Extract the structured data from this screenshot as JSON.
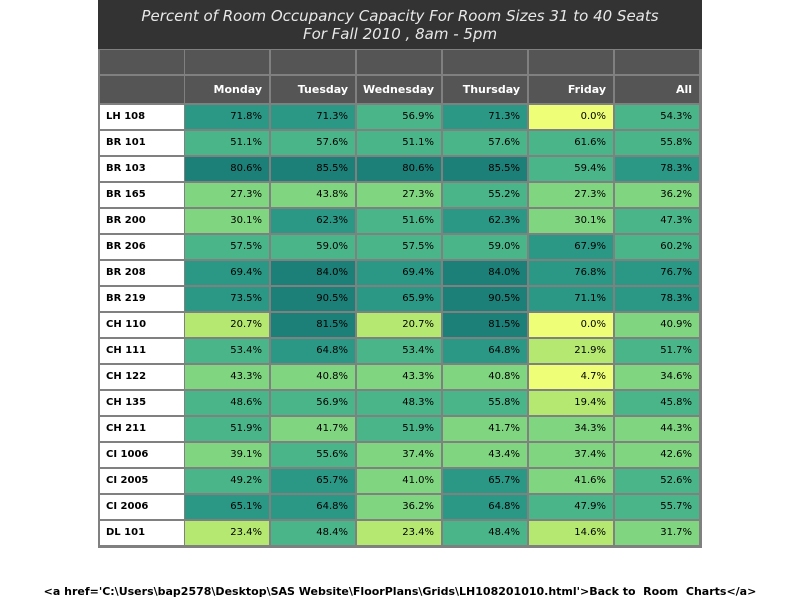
{
  "chart_data": {
    "type": "heatmap",
    "title_line1": "Percent of Room Occupancy Capacity For Room Sizes 31 to 40 Seats",
    "title_line2": "For Fall 2010  , 8am - 5pm",
    "columns": [
      "Monday",
      "Tuesday",
      "Wednesday",
      "Thursday",
      "Friday",
      "All"
    ],
    "rows": [
      {
        "room": "LH 108",
        "values": [
          71.8,
          71.3,
          56.9,
          71.3,
          0.0,
          54.3
        ]
      },
      {
        "room": "BR 101",
        "values": [
          51.1,
          57.6,
          51.1,
          57.6,
          61.6,
          55.8
        ]
      },
      {
        "room": "BR 103",
        "values": [
          80.6,
          85.5,
          80.6,
          85.5,
          59.4,
          78.3
        ]
      },
      {
        "room": "BR 165",
        "values": [
          27.3,
          43.8,
          27.3,
          55.2,
          27.3,
          36.2
        ]
      },
      {
        "room": "BR 200",
        "values": [
          30.1,
          62.3,
          51.6,
          62.3,
          30.1,
          47.3
        ]
      },
      {
        "room": "BR 206",
        "values": [
          57.5,
          59.0,
          57.5,
          59.0,
          67.9,
          60.2
        ]
      },
      {
        "room": "BR 208",
        "values": [
          69.4,
          84.0,
          69.4,
          84.0,
          76.8,
          76.7
        ]
      },
      {
        "room": "BR 219",
        "values": [
          73.5,
          90.5,
          65.9,
          90.5,
          71.1,
          78.3
        ]
      },
      {
        "room": "CH 110",
        "values": [
          20.7,
          81.5,
          20.7,
          81.5,
          0.0,
          40.9
        ]
      },
      {
        "room": "CH 111",
        "values": [
          53.4,
          64.8,
          53.4,
          64.8,
          21.9,
          51.7
        ]
      },
      {
        "room": "CH 122",
        "values": [
          43.3,
          40.8,
          43.3,
          40.8,
          4.7,
          34.6
        ]
      },
      {
        "room": "CH 135",
        "values": [
          48.6,
          56.9,
          48.3,
          55.8,
          19.4,
          45.8
        ]
      },
      {
        "room": "CH 211",
        "values": [
          51.9,
          41.7,
          51.9,
          41.7,
          34.3,
          44.3
        ]
      },
      {
        "room": "CI 1006",
        "values": [
          39.1,
          55.6,
          37.4,
          43.4,
          37.4,
          42.6
        ]
      },
      {
        "room": "CI 2005",
        "values": [
          49.2,
          65.7,
          41.0,
          65.7,
          41.6,
          52.6
        ]
      },
      {
        "room": "CI 2006",
        "values": [
          65.1,
          64.8,
          36.2,
          64.8,
          47.9,
          55.7
        ]
      },
      {
        "room": "DL 101",
        "values": [
          23.4,
          48.4,
          23.4,
          48.4,
          14.6,
          31.7
        ]
      }
    ],
    "value_suffix": "%",
    "colors": {
      "low": "#eeff77",
      "mid_low": "#80d580",
      "mid": "#4bb58a",
      "high": "#2b9785",
      "max": "#1d8078",
      "header_bg": "#555555",
      "title_bg": "#333333",
      "grid_line": "#808080"
    }
  },
  "footer": {
    "link_text": "<a href='C:\\Users\\bap2578\\Desktop\\SAS Website\\FloorPlans\\Grids\\LH108201010.html'>Back to  Room  Charts</a>"
  }
}
